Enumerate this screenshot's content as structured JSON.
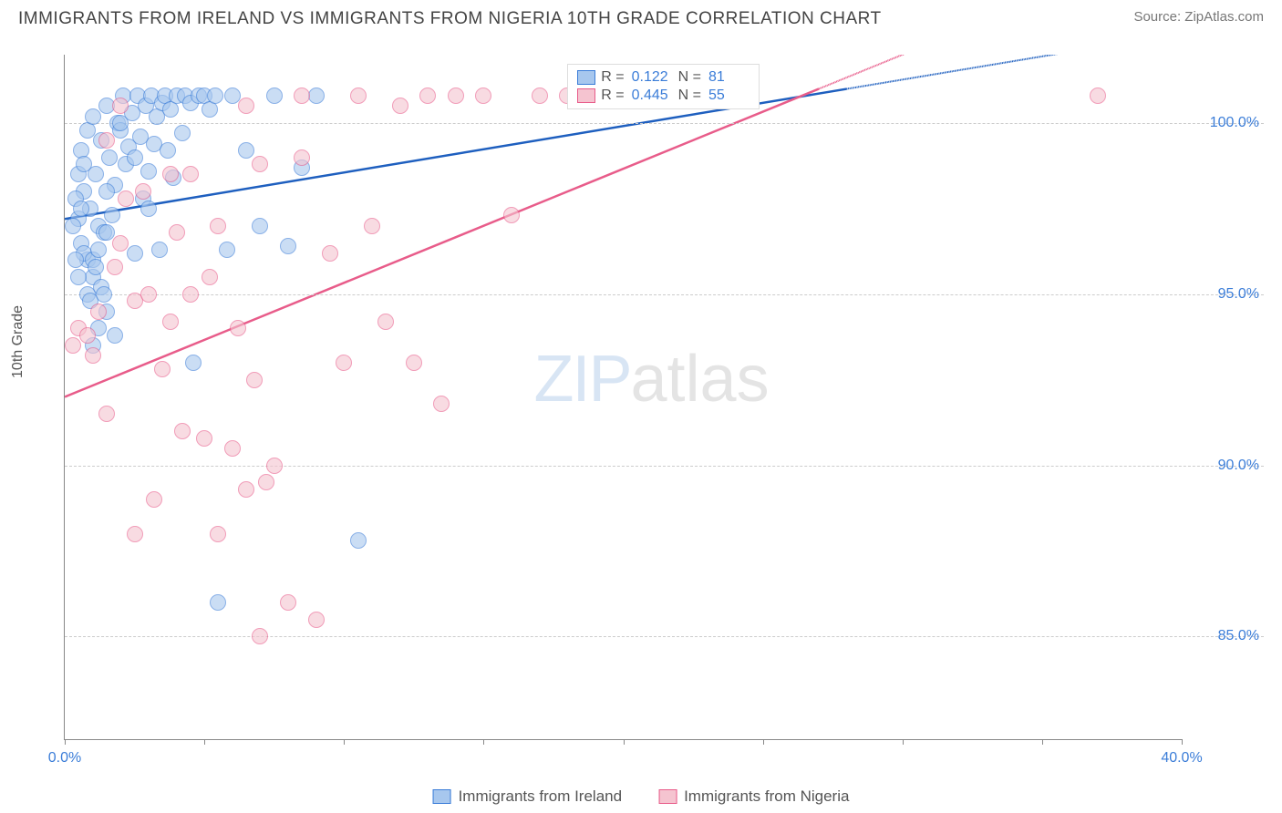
{
  "title": "IMMIGRANTS FROM IRELAND VS IMMIGRANTS FROM NIGERIA 10TH GRADE CORRELATION CHART",
  "source": "Source: ZipAtlas.com",
  "y_axis_label": "10th Grade",
  "watermark_zip": "ZIP",
  "watermark_atlas": "atlas",
  "chart": {
    "type": "scatter",
    "xlim": [
      0,
      40
    ],
    "ylim": [
      82,
      102
    ],
    "background_color": "#ffffff",
    "grid_color": "#cccccc",
    "y_ticks": [
      {
        "value": 85.0,
        "label": "85.0%"
      },
      {
        "value": 90.0,
        "label": "90.0%"
      },
      {
        "value": 95.0,
        "label": "95.0%"
      },
      {
        "value": 100.0,
        "label": "100.0%"
      }
    ],
    "x_ticks": [
      {
        "value": 0,
        "label": "0.0%"
      },
      {
        "value": 5,
        "label": ""
      },
      {
        "value": 10,
        "label": ""
      },
      {
        "value": 15,
        "label": ""
      },
      {
        "value": 20,
        "label": ""
      },
      {
        "value": 25,
        "label": ""
      },
      {
        "value": 30,
        "label": ""
      },
      {
        "value": 35,
        "label": ""
      },
      {
        "value": 40,
        "label": "40.0%"
      }
    ],
    "series": [
      {
        "name": "Immigrants from Ireland",
        "fill_color": "#a7c7ee",
        "stroke_color": "#3b7dd8",
        "line_color": "#1e5fbf",
        "R": "0.122",
        "N": "81",
        "trend": {
          "x1": 0,
          "y1": 97.2,
          "x2": 28,
          "y2": 101.0
        },
        "points": [
          [
            0.5,
            97.2
          ],
          [
            0.6,
            96.5
          ],
          [
            0.7,
            98.0
          ],
          [
            0.8,
            96.0
          ],
          [
            0.9,
            97.5
          ],
          [
            1.0,
            95.5
          ],
          [
            1.1,
            98.5
          ],
          [
            1.2,
            97.0
          ],
          [
            1.3,
            99.5
          ],
          [
            1.4,
            96.8
          ],
          [
            1.5,
            100.5
          ],
          [
            1.6,
            99.0
          ],
          [
            1.7,
            97.3
          ],
          [
            1.8,
            98.2
          ],
          [
            1.9,
            100.0
          ],
          [
            2.0,
            99.8
          ],
          [
            2.1,
            100.8
          ],
          [
            2.2,
            98.8
          ],
          [
            2.3,
            99.3
          ],
          [
            2.4,
            100.3
          ],
          [
            2.5,
            96.2
          ],
          [
            2.6,
            100.8
          ],
          [
            2.7,
            99.6
          ],
          [
            2.8,
            97.8
          ],
          [
            2.9,
            100.5
          ],
          [
            3.0,
            98.6
          ],
          [
            3.1,
            100.8
          ],
          [
            3.2,
            99.4
          ],
          [
            3.3,
            100.2
          ],
          [
            3.4,
            96.3
          ],
          [
            3.5,
            100.6
          ],
          [
            3.6,
            100.8
          ],
          [
            3.7,
            99.2
          ],
          [
            3.8,
            100.4
          ],
          [
            3.9,
            98.4
          ],
          [
            4.0,
            100.8
          ],
          [
            4.2,
            99.7
          ],
          [
            4.3,
            100.8
          ],
          [
            4.5,
            100.6
          ],
          [
            4.6,
            93.0
          ],
          [
            4.8,
            100.8
          ],
          [
            5.0,
            100.8
          ],
          [
            5.2,
            100.4
          ],
          [
            5.4,
            100.8
          ],
          [
            5.5,
            86.0
          ],
          [
            5.8,
            96.3
          ],
          [
            6.0,
            100.8
          ],
          [
            6.5,
            99.2
          ],
          [
            7.0,
            97.0
          ],
          [
            7.5,
            100.8
          ],
          [
            8.0,
            96.4
          ],
          [
            8.5,
            98.7
          ],
          [
            9.0,
            100.8
          ],
          [
            10.5,
            87.8
          ],
          [
            1.0,
            93.5
          ],
          [
            1.2,
            94.0
          ],
          [
            1.5,
            94.5
          ],
          [
            1.8,
            93.8
          ],
          [
            0.4,
            97.8
          ],
          [
            0.5,
            98.5
          ],
          [
            0.6,
            99.2
          ],
          [
            0.7,
            96.2
          ],
          [
            0.8,
            95.0
          ],
          [
            0.9,
            94.8
          ],
          [
            1.0,
            96.0
          ],
          [
            1.1,
            95.8
          ],
          [
            1.2,
            96.3
          ],
          [
            1.3,
            95.2
          ],
          [
            1.4,
            95.0
          ],
          [
            1.5,
            96.8
          ],
          [
            0.3,
            97.0
          ],
          [
            0.4,
            96.0
          ],
          [
            0.5,
            95.5
          ],
          [
            0.6,
            97.5
          ],
          [
            0.7,
            98.8
          ],
          [
            0.8,
            99.8
          ],
          [
            1.0,
            100.2
          ],
          [
            1.5,
            98.0
          ],
          [
            2.0,
            100.0
          ],
          [
            2.5,
            99.0
          ],
          [
            3.0,
            97.5
          ]
        ]
      },
      {
        "name": "Immigrants from Nigeria",
        "fill_color": "#f5c4d0",
        "stroke_color": "#e85c8a",
        "line_color": "#e85c8a",
        "R": "0.445",
        "N": "55",
        "trend": {
          "x1": 0,
          "y1": 92.0,
          "x2": 27,
          "y2": 101.0
        },
        "points": [
          [
            0.3,
            93.5
          ],
          [
            0.5,
            94.0
          ],
          [
            0.8,
            93.8
          ],
          [
            1.0,
            93.2
          ],
          [
            1.2,
            94.5
          ],
          [
            1.5,
            91.5
          ],
          [
            1.8,
            95.8
          ],
          [
            2.0,
            96.5
          ],
          [
            2.2,
            97.8
          ],
          [
            2.5,
            94.8
          ],
          [
            2.8,
            98.0
          ],
          [
            3.0,
            95.0
          ],
          [
            3.2,
            89.0
          ],
          [
            3.5,
            92.8
          ],
          [
            3.8,
            94.2
          ],
          [
            4.0,
            96.8
          ],
          [
            4.2,
            91.0
          ],
          [
            4.5,
            98.5
          ],
          [
            5.0,
            90.8
          ],
          [
            5.2,
            95.5
          ],
          [
            5.5,
            88.0
          ],
          [
            6.0,
            90.5
          ],
          [
            6.2,
            94.0
          ],
          [
            6.5,
            89.3
          ],
          [
            6.8,
            92.5
          ],
          [
            7.0,
            98.8
          ],
          [
            7.2,
            89.5
          ],
          [
            7.5,
            90.0
          ],
          [
            8.0,
            86.0
          ],
          [
            8.5,
            99.0
          ],
          [
            9.0,
            85.5
          ],
          [
            9.5,
            96.2
          ],
          [
            10.0,
            93.0
          ],
          [
            11.0,
            97.0
          ],
          [
            11.5,
            94.2
          ],
          [
            12.0,
            100.5
          ],
          [
            12.5,
            93.0
          ],
          [
            13.0,
            100.8
          ],
          [
            13.5,
            91.8
          ],
          [
            14.0,
            100.8
          ],
          [
            15.0,
            100.8
          ],
          [
            16.0,
            97.3
          ],
          [
            17.0,
            100.8
          ],
          [
            18.0,
            100.8
          ],
          [
            2.5,
            88.0
          ],
          [
            3.8,
            98.5
          ],
          [
            4.5,
            95.0
          ],
          [
            5.5,
            97.0
          ],
          [
            6.5,
            100.5
          ],
          [
            7.0,
            85.0
          ],
          [
            1.5,
            99.5
          ],
          [
            2.0,
            100.5
          ],
          [
            8.5,
            100.8
          ],
          [
            10.5,
            100.8
          ],
          [
            37.0,
            100.8
          ]
        ]
      }
    ]
  },
  "bottom_legend": [
    {
      "label": "Immigrants from Ireland",
      "fill": "#a7c7ee",
      "stroke": "#3b7dd8"
    },
    {
      "label": "Immigrants from Nigeria",
      "fill": "#f5c4d0",
      "stroke": "#e85c8a"
    }
  ]
}
